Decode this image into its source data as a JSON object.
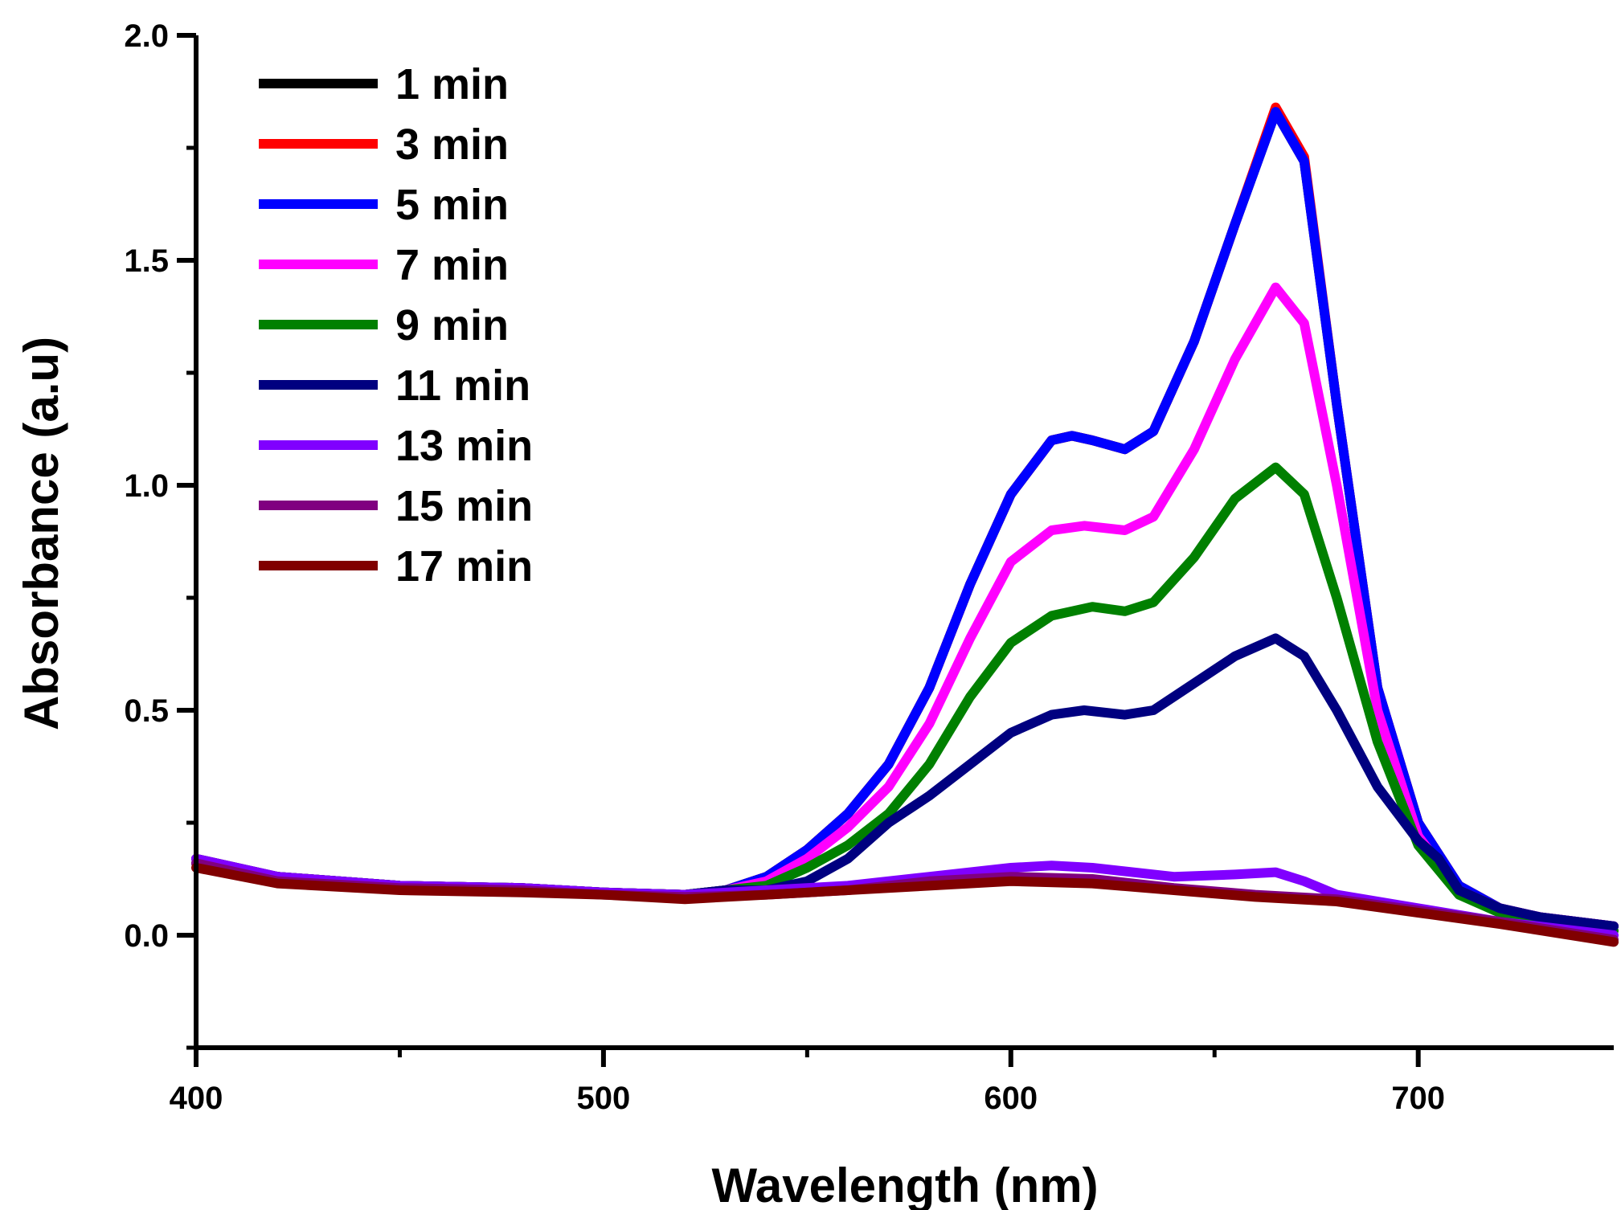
{
  "chart_data": {
    "type": "line",
    "title": "",
    "xlabel": "Wavelength (nm)",
    "ylabel": "Absorbance (a.u)",
    "xlim": [
      400,
      748
    ],
    "ylim": [
      -0.25,
      2.0
    ],
    "xticks": [
      400,
      500,
      600,
      700
    ],
    "yticks": [
      0.0,
      0.5,
      1.0,
      1.5,
      2.0
    ],
    "xtick_labels": [
      "400",
      "500",
      "600",
      "700"
    ],
    "ytick_labels": [
      "0.0",
      "0.5",
      "1.0",
      "1.5",
      "2.0"
    ],
    "legend_position": "top-left",
    "grid": false,
    "series": [
      {
        "name": "1 min",
        "color": "#000000",
        "points": [
          [
            400,
            0.17
          ],
          [
            420,
            0.13
          ],
          [
            450,
            0.11
          ],
          [
            480,
            0.105
          ],
          [
            500,
            0.095
          ],
          [
            520,
            0.09
          ],
          [
            530,
            0.1
          ],
          [
            540,
            0.13
          ],
          [
            550,
            0.19
          ],
          [
            560,
            0.27
          ],
          [
            570,
            0.38
          ],
          [
            580,
            0.55
          ],
          [
            590,
            0.78
          ],
          [
            600,
            0.98
          ],
          [
            610,
            1.1
          ],
          [
            615,
            1.11
          ],
          [
            620,
            1.1
          ],
          [
            628,
            1.08
          ],
          [
            635,
            1.12
          ],
          [
            645,
            1.32
          ],
          [
            655,
            1.58
          ],
          [
            665,
            1.83
          ],
          [
            672,
            1.72
          ],
          [
            680,
            1.18
          ],
          [
            690,
            0.55
          ],
          [
            700,
            0.25
          ],
          [
            710,
            0.11
          ],
          [
            720,
            0.06
          ],
          [
            730,
            0.04
          ],
          [
            748,
            0.02
          ]
        ]
      },
      {
        "name": "3 min",
        "color": "#ff0000",
        "points": [
          [
            400,
            0.17
          ],
          [
            420,
            0.13
          ],
          [
            450,
            0.11
          ],
          [
            480,
            0.105
          ],
          [
            500,
            0.095
          ],
          [
            520,
            0.09
          ],
          [
            530,
            0.1
          ],
          [
            540,
            0.13
          ],
          [
            550,
            0.19
          ],
          [
            560,
            0.27
          ],
          [
            570,
            0.38
          ],
          [
            580,
            0.55
          ],
          [
            590,
            0.78
          ],
          [
            600,
            0.98
          ],
          [
            610,
            1.1
          ],
          [
            615,
            1.11
          ],
          [
            620,
            1.1
          ],
          [
            628,
            1.08
          ],
          [
            635,
            1.12
          ],
          [
            645,
            1.32
          ],
          [
            655,
            1.58
          ],
          [
            665,
            1.84
          ],
          [
            672,
            1.73
          ],
          [
            680,
            1.18
          ],
          [
            690,
            0.55
          ],
          [
            700,
            0.25
          ],
          [
            710,
            0.11
          ],
          [
            720,
            0.06
          ],
          [
            730,
            0.04
          ],
          [
            748,
            0.02
          ]
        ]
      },
      {
        "name": "5 min",
        "color": "#0000ff",
        "points": [
          [
            400,
            0.17
          ],
          [
            420,
            0.13
          ],
          [
            450,
            0.11
          ],
          [
            480,
            0.105
          ],
          [
            500,
            0.095
          ],
          [
            520,
            0.09
          ],
          [
            530,
            0.1
          ],
          [
            540,
            0.13
          ],
          [
            550,
            0.19
          ],
          [
            560,
            0.27
          ],
          [
            570,
            0.38
          ],
          [
            580,
            0.55
          ],
          [
            590,
            0.78
          ],
          [
            600,
            0.98
          ],
          [
            610,
            1.1
          ],
          [
            615,
            1.11
          ],
          [
            620,
            1.1
          ],
          [
            628,
            1.08
          ],
          [
            635,
            1.12
          ],
          [
            645,
            1.32
          ],
          [
            655,
            1.58
          ],
          [
            665,
            1.83
          ],
          [
            672,
            1.72
          ],
          [
            680,
            1.18
          ],
          [
            690,
            0.55
          ],
          [
            700,
            0.25
          ],
          [
            710,
            0.11
          ],
          [
            720,
            0.06
          ],
          [
            730,
            0.04
          ],
          [
            748,
            0.02
          ]
        ]
      },
      {
        "name": "7 min",
        "color": "#ff00ff",
        "points": [
          [
            400,
            0.16
          ],
          [
            420,
            0.13
          ],
          [
            450,
            0.11
          ],
          [
            480,
            0.105
          ],
          [
            500,
            0.095
          ],
          [
            520,
            0.09
          ],
          [
            530,
            0.1
          ],
          [
            540,
            0.12
          ],
          [
            550,
            0.17
          ],
          [
            560,
            0.24
          ],
          [
            570,
            0.33
          ],
          [
            580,
            0.47
          ],
          [
            590,
            0.66
          ],
          [
            600,
            0.83
          ],
          [
            610,
            0.9
          ],
          [
            618,
            0.91
          ],
          [
            628,
            0.9
          ],
          [
            635,
            0.93
          ],
          [
            645,
            1.08
          ],
          [
            655,
            1.28
          ],
          [
            665,
            1.44
          ],
          [
            672,
            1.36
          ],
          [
            680,
            1.0
          ],
          [
            690,
            0.5
          ],
          [
            700,
            0.22
          ],
          [
            710,
            0.1
          ],
          [
            720,
            0.06
          ],
          [
            730,
            0.04
          ],
          [
            748,
            0.02
          ]
        ]
      },
      {
        "name": "9 min",
        "color": "#008000",
        "points": [
          [
            400,
            0.16
          ],
          [
            420,
            0.13
          ],
          [
            450,
            0.11
          ],
          [
            480,
            0.105
          ],
          [
            500,
            0.095
          ],
          [
            520,
            0.09
          ],
          [
            530,
            0.1
          ],
          [
            540,
            0.11
          ],
          [
            550,
            0.15
          ],
          [
            560,
            0.2
          ],
          [
            570,
            0.27
          ],
          [
            580,
            0.38
          ],
          [
            590,
            0.53
          ],
          [
            600,
            0.65
          ],
          [
            610,
            0.71
          ],
          [
            620,
            0.73
          ],
          [
            628,
            0.72
          ],
          [
            635,
            0.74
          ],
          [
            645,
            0.84
          ],
          [
            655,
            0.97
          ],
          [
            665,
            1.04
          ],
          [
            672,
            0.98
          ],
          [
            680,
            0.75
          ],
          [
            690,
            0.43
          ],
          [
            700,
            0.2
          ],
          [
            710,
            0.09
          ],
          [
            720,
            0.05
          ],
          [
            730,
            0.03
          ],
          [
            748,
            0.01
          ]
        ]
      },
      {
        "name": "11 min",
        "color": "#000080",
        "points": [
          [
            400,
            0.16
          ],
          [
            420,
            0.13
          ],
          [
            450,
            0.11
          ],
          [
            480,
            0.105
          ],
          [
            500,
            0.095
          ],
          [
            520,
            0.09
          ],
          [
            530,
            0.1
          ],
          [
            540,
            0.1
          ],
          [
            550,
            0.12
          ],
          [
            560,
            0.17
          ],
          [
            570,
            0.25
          ],
          [
            580,
            0.31
          ],
          [
            590,
            0.38
          ],
          [
            600,
            0.45
          ],
          [
            610,
            0.49
          ],
          [
            618,
            0.5
          ],
          [
            628,
            0.49
          ],
          [
            635,
            0.5
          ],
          [
            645,
            0.56
          ],
          [
            655,
            0.62
          ],
          [
            665,
            0.66
          ],
          [
            672,
            0.62
          ],
          [
            680,
            0.5
          ],
          [
            690,
            0.33
          ],
          [
            700,
            0.21
          ],
          [
            705,
            0.17
          ],
          [
            710,
            0.1
          ],
          [
            720,
            0.06
          ],
          [
            730,
            0.04
          ],
          [
            748,
            0.02
          ]
        ]
      },
      {
        "name": "13 min",
        "color": "#8000ff",
        "points": [
          [
            400,
            0.17
          ],
          [
            420,
            0.13
          ],
          [
            450,
            0.11
          ],
          [
            480,
            0.105
          ],
          [
            500,
            0.095
          ],
          [
            520,
            0.09
          ],
          [
            540,
            0.1
          ],
          [
            560,
            0.11
          ],
          [
            580,
            0.13
          ],
          [
            600,
            0.15
          ],
          [
            610,
            0.155
          ],
          [
            620,
            0.15
          ],
          [
            640,
            0.13
          ],
          [
            655,
            0.135
          ],
          [
            665,
            0.14
          ],
          [
            672,
            0.12
          ],
          [
            680,
            0.09
          ],
          [
            700,
            0.06
          ],
          [
            720,
            0.03
          ],
          [
            748,
            0.0
          ]
        ]
      },
      {
        "name": "15 min",
        "color": "#800080",
        "points": [
          [
            400,
            0.16
          ],
          [
            420,
            0.12
          ],
          [
            450,
            0.105
          ],
          [
            480,
            0.1
          ],
          [
            500,
            0.09
          ],
          [
            520,
            0.085
          ],
          [
            540,
            0.09
          ],
          [
            560,
            0.1
          ],
          [
            580,
            0.12
          ],
          [
            600,
            0.13
          ],
          [
            620,
            0.125
          ],
          [
            640,
            0.105
          ],
          [
            660,
            0.09
          ],
          [
            680,
            0.08
          ],
          [
            700,
            0.055
          ],
          [
            720,
            0.03
          ],
          [
            748,
            -0.01
          ]
        ]
      },
      {
        "name": "17 min",
        "color": "#800000",
        "points": [
          [
            400,
            0.15
          ],
          [
            420,
            0.115
          ],
          [
            450,
            0.1
          ],
          [
            480,
            0.095
          ],
          [
            500,
            0.09
          ],
          [
            520,
            0.08
          ],
          [
            540,
            0.09
          ],
          [
            560,
            0.1
          ],
          [
            580,
            0.11
          ],
          [
            600,
            0.12
          ],
          [
            620,
            0.115
          ],
          [
            640,
            0.1
          ],
          [
            660,
            0.085
          ],
          [
            680,
            0.075
          ],
          [
            700,
            0.05
          ],
          [
            720,
            0.025
          ],
          [
            748,
            -0.015
          ]
        ]
      }
    ]
  }
}
